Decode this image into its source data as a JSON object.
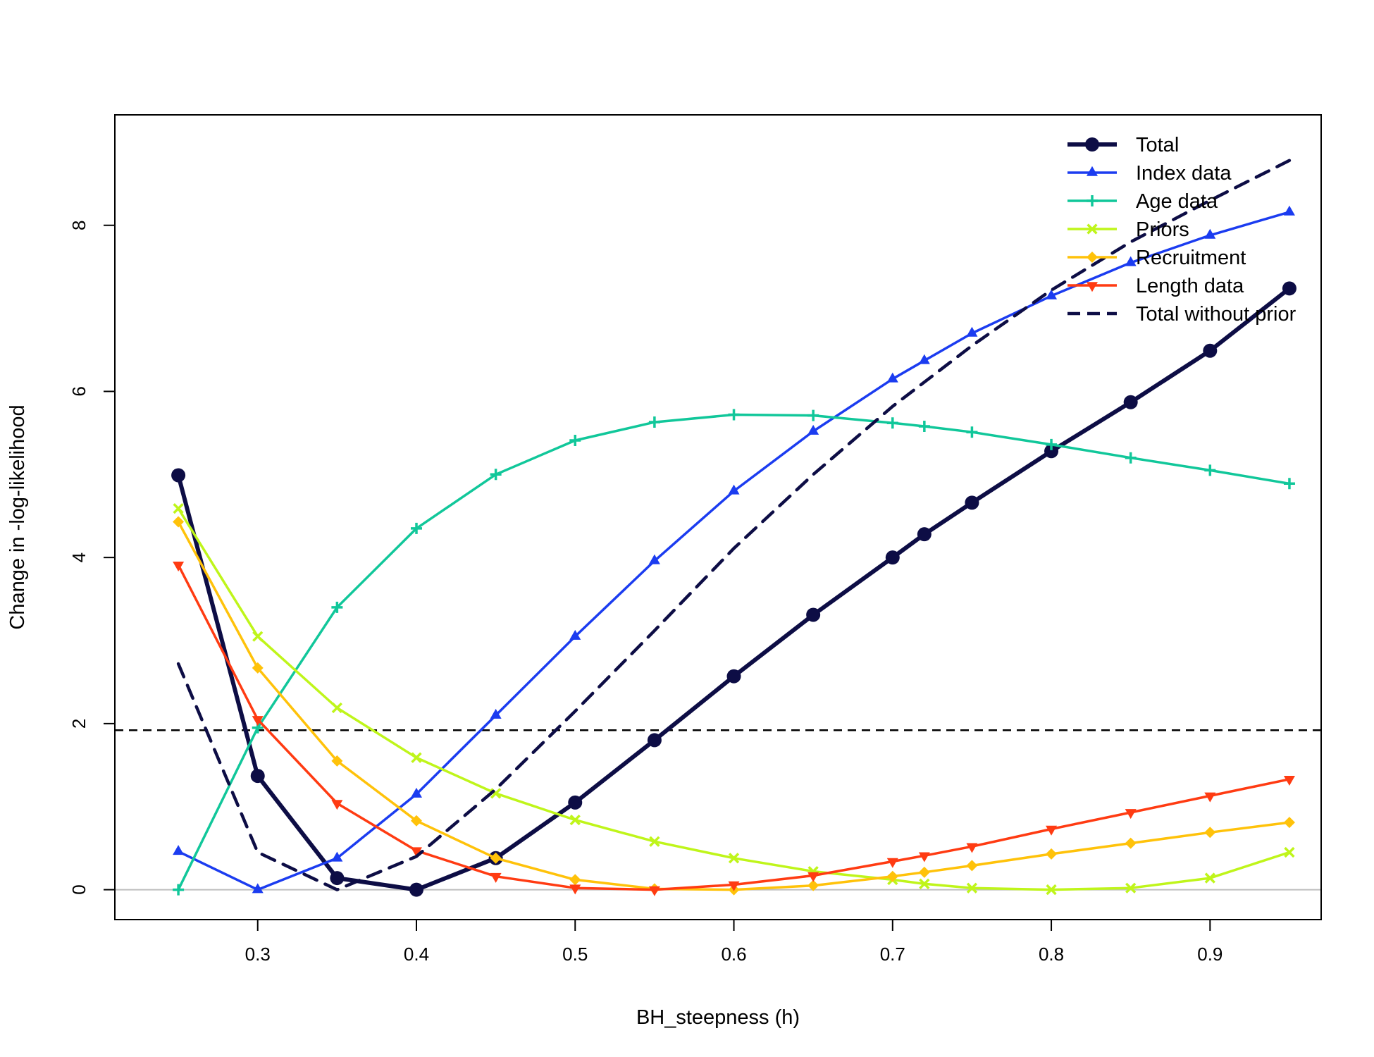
{
  "chart_data": {
    "type": "line",
    "title": "",
    "xlabel": "BH_steepness (h)",
    "ylabel": "Change in -log-likelihood",
    "xlim": [
      0.21,
      0.97
    ],
    "ylim": [
      -0.36,
      9.33
    ],
    "x_ticks": [
      0.3,
      0.4,
      0.5,
      0.6,
      0.7,
      0.8,
      0.9
    ],
    "y_ticks": [
      0,
      2,
      4,
      6,
      8
    ],
    "grid": false,
    "legend_position": "top-right",
    "reference_lines": [
      {
        "kind": "horizontal",
        "y": 0,
        "color": "#bebebe",
        "style": "solid"
      },
      {
        "kind": "horizontal",
        "y": 1.92,
        "color": "#000000",
        "style": "dashed"
      }
    ],
    "series": [
      {
        "name": "Total",
        "color": "#0d0d45",
        "marker": "circle",
        "line": "solid-thick",
        "x": [
          0.25,
          0.3,
          0.35,
          0.4,
          0.45,
          0.5,
          0.55,
          0.6,
          0.65,
          0.7,
          0.72,
          0.75,
          0.8,
          0.85,
          0.9,
          0.95
        ],
        "y": [
          4.99,
          1.37,
          0.14,
          0.0,
          0.38,
          1.05,
          1.8,
          2.57,
          3.31,
          4.0,
          4.28,
          4.66,
          5.28,
          5.87,
          6.49,
          7.24
        ]
      },
      {
        "name": "Index data",
        "color": "#1b3cf0",
        "marker": "triangle-up",
        "line": "solid",
        "x": [
          0.25,
          0.3,
          0.35,
          0.4,
          0.45,
          0.5,
          0.55,
          0.6,
          0.65,
          0.7,
          0.72,
          0.75,
          0.8,
          0.85,
          0.9,
          0.95
        ],
        "y": [
          0.46,
          0.0,
          0.38,
          1.15,
          2.1,
          3.05,
          3.96,
          4.8,
          5.52,
          6.15,
          6.37,
          6.7,
          7.15,
          7.55,
          7.88,
          8.16
        ]
      },
      {
        "name": "Age data",
        "color": "#11c79a",
        "marker": "plus",
        "line": "solid",
        "x": [
          0.25,
          0.3,
          0.35,
          0.4,
          0.45,
          0.5,
          0.55,
          0.6,
          0.65,
          0.7,
          0.72,
          0.75,
          0.8,
          0.85,
          0.9,
          0.95
        ],
        "y": [
          0.0,
          1.95,
          3.4,
          4.35,
          5.0,
          5.41,
          5.63,
          5.72,
          5.71,
          5.62,
          5.58,
          5.51,
          5.36,
          5.2,
          5.05,
          4.89
        ]
      },
      {
        "name": "Priors",
        "color": "#bff51a",
        "marker": "cross",
        "line": "solid",
        "x": [
          0.25,
          0.3,
          0.35,
          0.4,
          0.45,
          0.5,
          0.55,
          0.6,
          0.65,
          0.7,
          0.72,
          0.75,
          0.8,
          0.85,
          0.9,
          0.95
        ],
        "y": [
          4.59,
          3.05,
          2.19,
          1.59,
          1.16,
          0.84,
          0.58,
          0.38,
          0.22,
          0.12,
          0.07,
          0.02,
          0.0,
          0.02,
          0.14,
          0.45
        ]
      },
      {
        "name": "Recruitment",
        "color": "#ffc20a",
        "marker": "diamond",
        "line": "solid",
        "x": [
          0.25,
          0.3,
          0.35,
          0.4,
          0.45,
          0.5,
          0.55,
          0.6,
          0.65,
          0.7,
          0.72,
          0.75,
          0.8,
          0.85,
          0.9,
          0.95
        ],
        "y": [
          4.43,
          2.67,
          1.55,
          0.83,
          0.38,
          0.12,
          0.01,
          0.0,
          0.05,
          0.16,
          0.21,
          0.29,
          0.43,
          0.56,
          0.69,
          0.81
        ]
      },
      {
        "name": "Length data",
        "color": "#ff3b12",
        "marker": "triangle-down",
        "line": "solid",
        "x": [
          0.25,
          0.3,
          0.35,
          0.4,
          0.45,
          0.5,
          0.55,
          0.6,
          0.65,
          0.7,
          0.72,
          0.75,
          0.8,
          0.85,
          0.9,
          0.95
        ],
        "y": [
          3.91,
          2.05,
          1.04,
          0.47,
          0.16,
          0.02,
          0.0,
          0.06,
          0.17,
          0.34,
          0.41,
          0.52,
          0.73,
          0.93,
          1.13,
          1.33
        ]
      },
      {
        "name": "Total without prior",
        "color": "#0d0d45",
        "marker": "none",
        "line": "dashed-thick",
        "x": [
          0.25,
          0.3,
          0.35,
          0.4,
          0.45,
          0.5,
          0.55,
          0.6,
          0.65,
          0.7,
          0.75,
          0.8,
          0.85,
          0.9,
          0.95
        ],
        "y": [
          2.72,
          0.45,
          0.0,
          0.4,
          1.21,
          2.15,
          3.12,
          4.11,
          5.0,
          5.82,
          6.55,
          7.22,
          7.8,
          8.3,
          8.78
        ]
      }
    ]
  }
}
